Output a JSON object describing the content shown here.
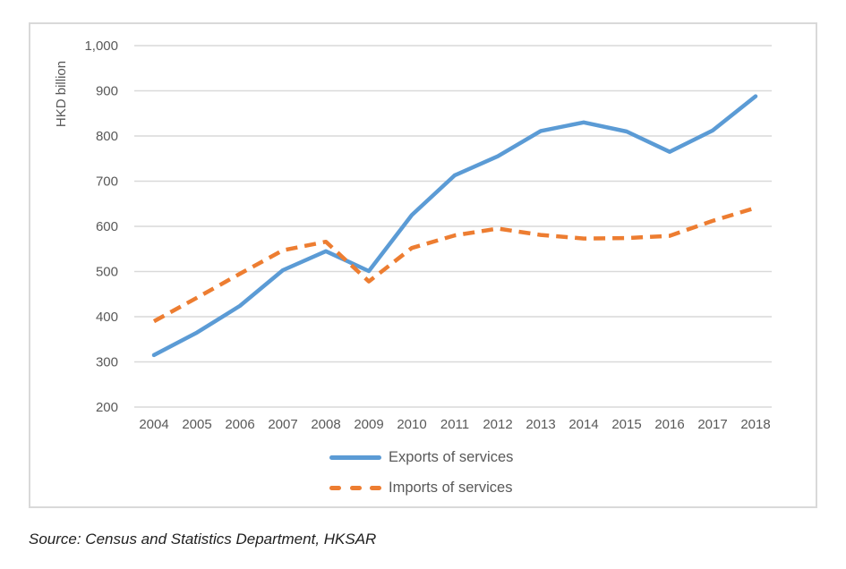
{
  "chart_data": {
    "type": "line",
    "title": "",
    "xlabel": "",
    "ylabel": "HKD billion",
    "categories": [
      "2004",
      "2005",
      "2006",
      "2007",
      "2008",
      "2009",
      "2010",
      "2011",
      "2012",
      "2013",
      "2014",
      "2015",
      "2016",
      "2017",
      "2018"
    ],
    "ylim": [
      200,
      1000
    ],
    "ytick_step": 100,
    "yticks": [
      {
        "value": 1000,
        "label": "1,000"
      },
      {
        "value": 900,
        "label": "900"
      },
      {
        "value": 800,
        "label": "800"
      },
      {
        "value": 700,
        "label": "700"
      },
      {
        "value": 600,
        "label": "600"
      },
      {
        "value": 500,
        "label": "500"
      },
      {
        "value": 400,
        "label": "400"
      },
      {
        "value": 300,
        "label": "300"
      },
      {
        "value": 200,
        "label": "200"
      }
    ],
    "grid": true,
    "legend_position": "bottom",
    "series": [
      {
        "name": "Exports of services",
        "color": "#5B9BD5",
        "style": "solid",
        "values": [
          315,
          365,
          424,
          503,
          545,
          501,
          625,
          713,
          755,
          811,
          830,
          810,
          765,
          812,
          888
        ]
      },
      {
        "name": "Imports of services",
        "color": "#ED7D31",
        "style": "dashed",
        "values": [
          390,
          442,
          495,
          547,
          566,
          478,
          552,
          580,
          595,
          581,
          573,
          574,
          579,
          612,
          641
        ]
      }
    ]
  },
  "source_note": "Source: Census and Statistics Department, HKSAR",
  "colors": {
    "gridline": "#D9D9D9",
    "axis_text": "#595959",
    "card_border": "#D9D9D9",
    "source_text": "#1F1F1F"
  }
}
